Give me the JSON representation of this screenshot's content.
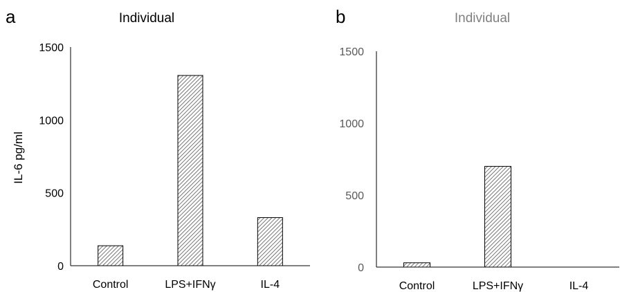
{
  "chart_data": [
    {
      "panel": "a",
      "type": "bar",
      "title": "Individual",
      "ylabel": "IL-6 pg/ml",
      "xlabel": "",
      "categories": [
        "Control",
        "LPS+IFNγ",
        "IL-4"
      ],
      "values": [
        137,
        1305,
        330
      ],
      "ylim": [
        0,
        1500
      ],
      "yticks": [
        "0",
        "500",
        "1000",
        "1500"
      ],
      "grid": false,
      "bar_fill": "hatched",
      "title_color": "#000000",
      "tick_color": "#000000"
    },
    {
      "panel": "b",
      "type": "bar",
      "title": "Individual",
      "ylabel": "",
      "xlabel": "",
      "categories": [
        "Control",
        "LPS+IFNγ",
        "IL-4"
      ],
      "values": [
        30,
        700,
        0
      ],
      "ylim": [
        0,
        1500
      ],
      "yticks": [
        "0",
        "500",
        "1000",
        "1500"
      ],
      "grid": false,
      "bar_fill": "hatched",
      "title_color": "#7f7f7f",
      "tick_color": "#595959"
    }
  ]
}
